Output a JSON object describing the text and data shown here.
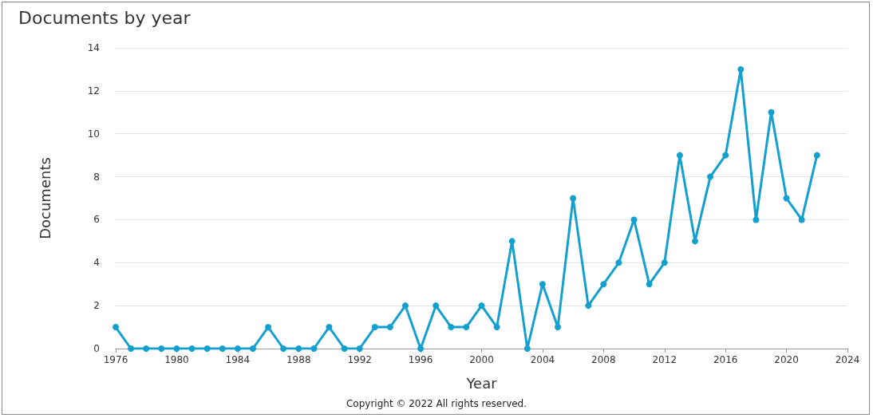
{
  "chart_data": {
    "type": "line",
    "title": "Documents by year",
    "xlabel": "Year",
    "ylabel": "Documents",
    "annotations": [
      "Copyright © 2022 All rights reserved."
    ],
    "x": [
      1976,
      1977,
      1978,
      1979,
      1980,
      1981,
      1982,
      1983,
      1984,
      1985,
      1986,
      1987,
      1988,
      1989,
      1990,
      1991,
      1992,
      1993,
      1994,
      1995,
      1996,
      1997,
      1998,
      1999,
      2000,
      2001,
      2002,
      2003,
      2004,
      2005,
      2006,
      2007,
      2008,
      2009,
      2010,
      2011,
      2012,
      2013,
      2014,
      2015,
      2016,
      2017,
      2018,
      2019,
      2020,
      2021,
      2022
    ],
    "series": [
      {
        "color": "#14a0cf",
        "values": [
          1,
          0,
          0,
          0,
          0,
          0,
          0,
          0,
          0,
          0,
          1,
          0,
          0,
          0,
          1,
          0,
          0,
          1,
          1,
          2,
          0,
          2,
          1,
          1,
          2,
          1,
          5,
          0,
          3,
          1,
          7,
          2,
          3,
          4,
          6,
          3,
          4,
          9,
          5,
          8,
          9,
          13,
          6,
          11,
          7,
          6,
          9
        ]
      }
    ],
    "xlim": [
      1976,
      2024
    ],
    "xticks": [
      1976,
      1980,
      1984,
      1988,
      1992,
      1996,
      2000,
      2004,
      2008,
      2012,
      2016,
      2020,
      2024
    ],
    "ylim": [
      0,
      14
    ],
    "yticks": [
      0,
      2,
      4,
      6,
      8,
      10,
      12,
      14
    ],
    "grid": "y",
    "marker": "circle",
    "line_style": "solid"
  }
}
